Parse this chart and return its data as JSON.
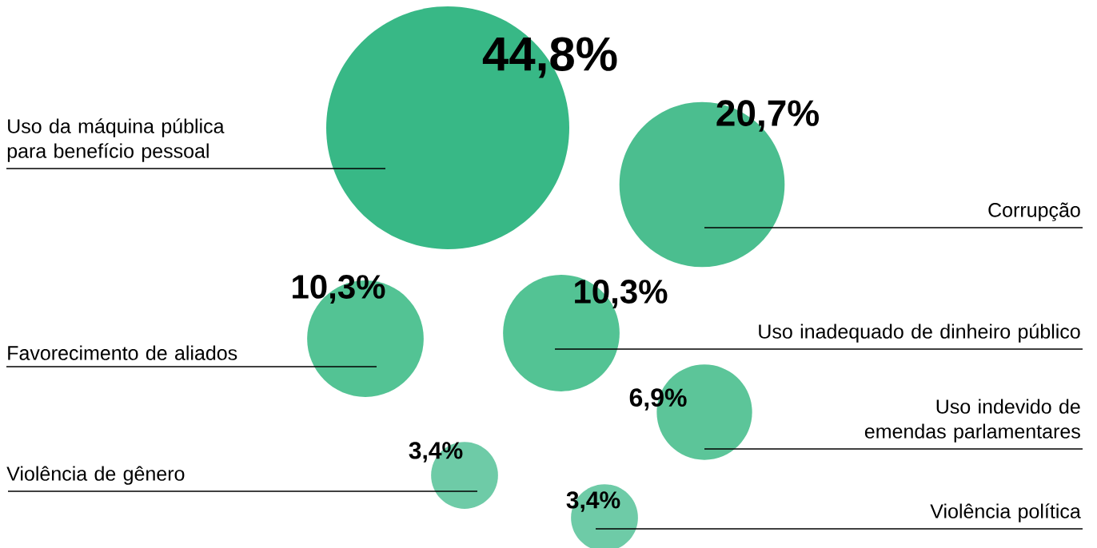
{
  "chart_data": {
    "type": "other",
    "categories": [
      "Uso da máquina pública para benefício pessoal",
      "Corrupção",
      "Favorecimento de aliados",
      "Uso inadequado de dinheiro público",
      "Uso indevido de emendas parlamentares",
      "Violência de gênero",
      "Violência política"
    ],
    "values": [
      44.8,
      20.7,
      10.3,
      10.3,
      6.9,
      3.4,
      3.4
    ],
    "value_labels": [
      "44,8%",
      "20,7%",
      "10,3%",
      "10,3%",
      "6,9%",
      "3,4%",
      "3,4%"
    ],
    "colors": [
      "#38b886",
      "#4bbe8f",
      "#53c394",
      "#53c394",
      "#5cc599",
      "#6ecba7",
      "#6ecba7"
    ]
  }
}
